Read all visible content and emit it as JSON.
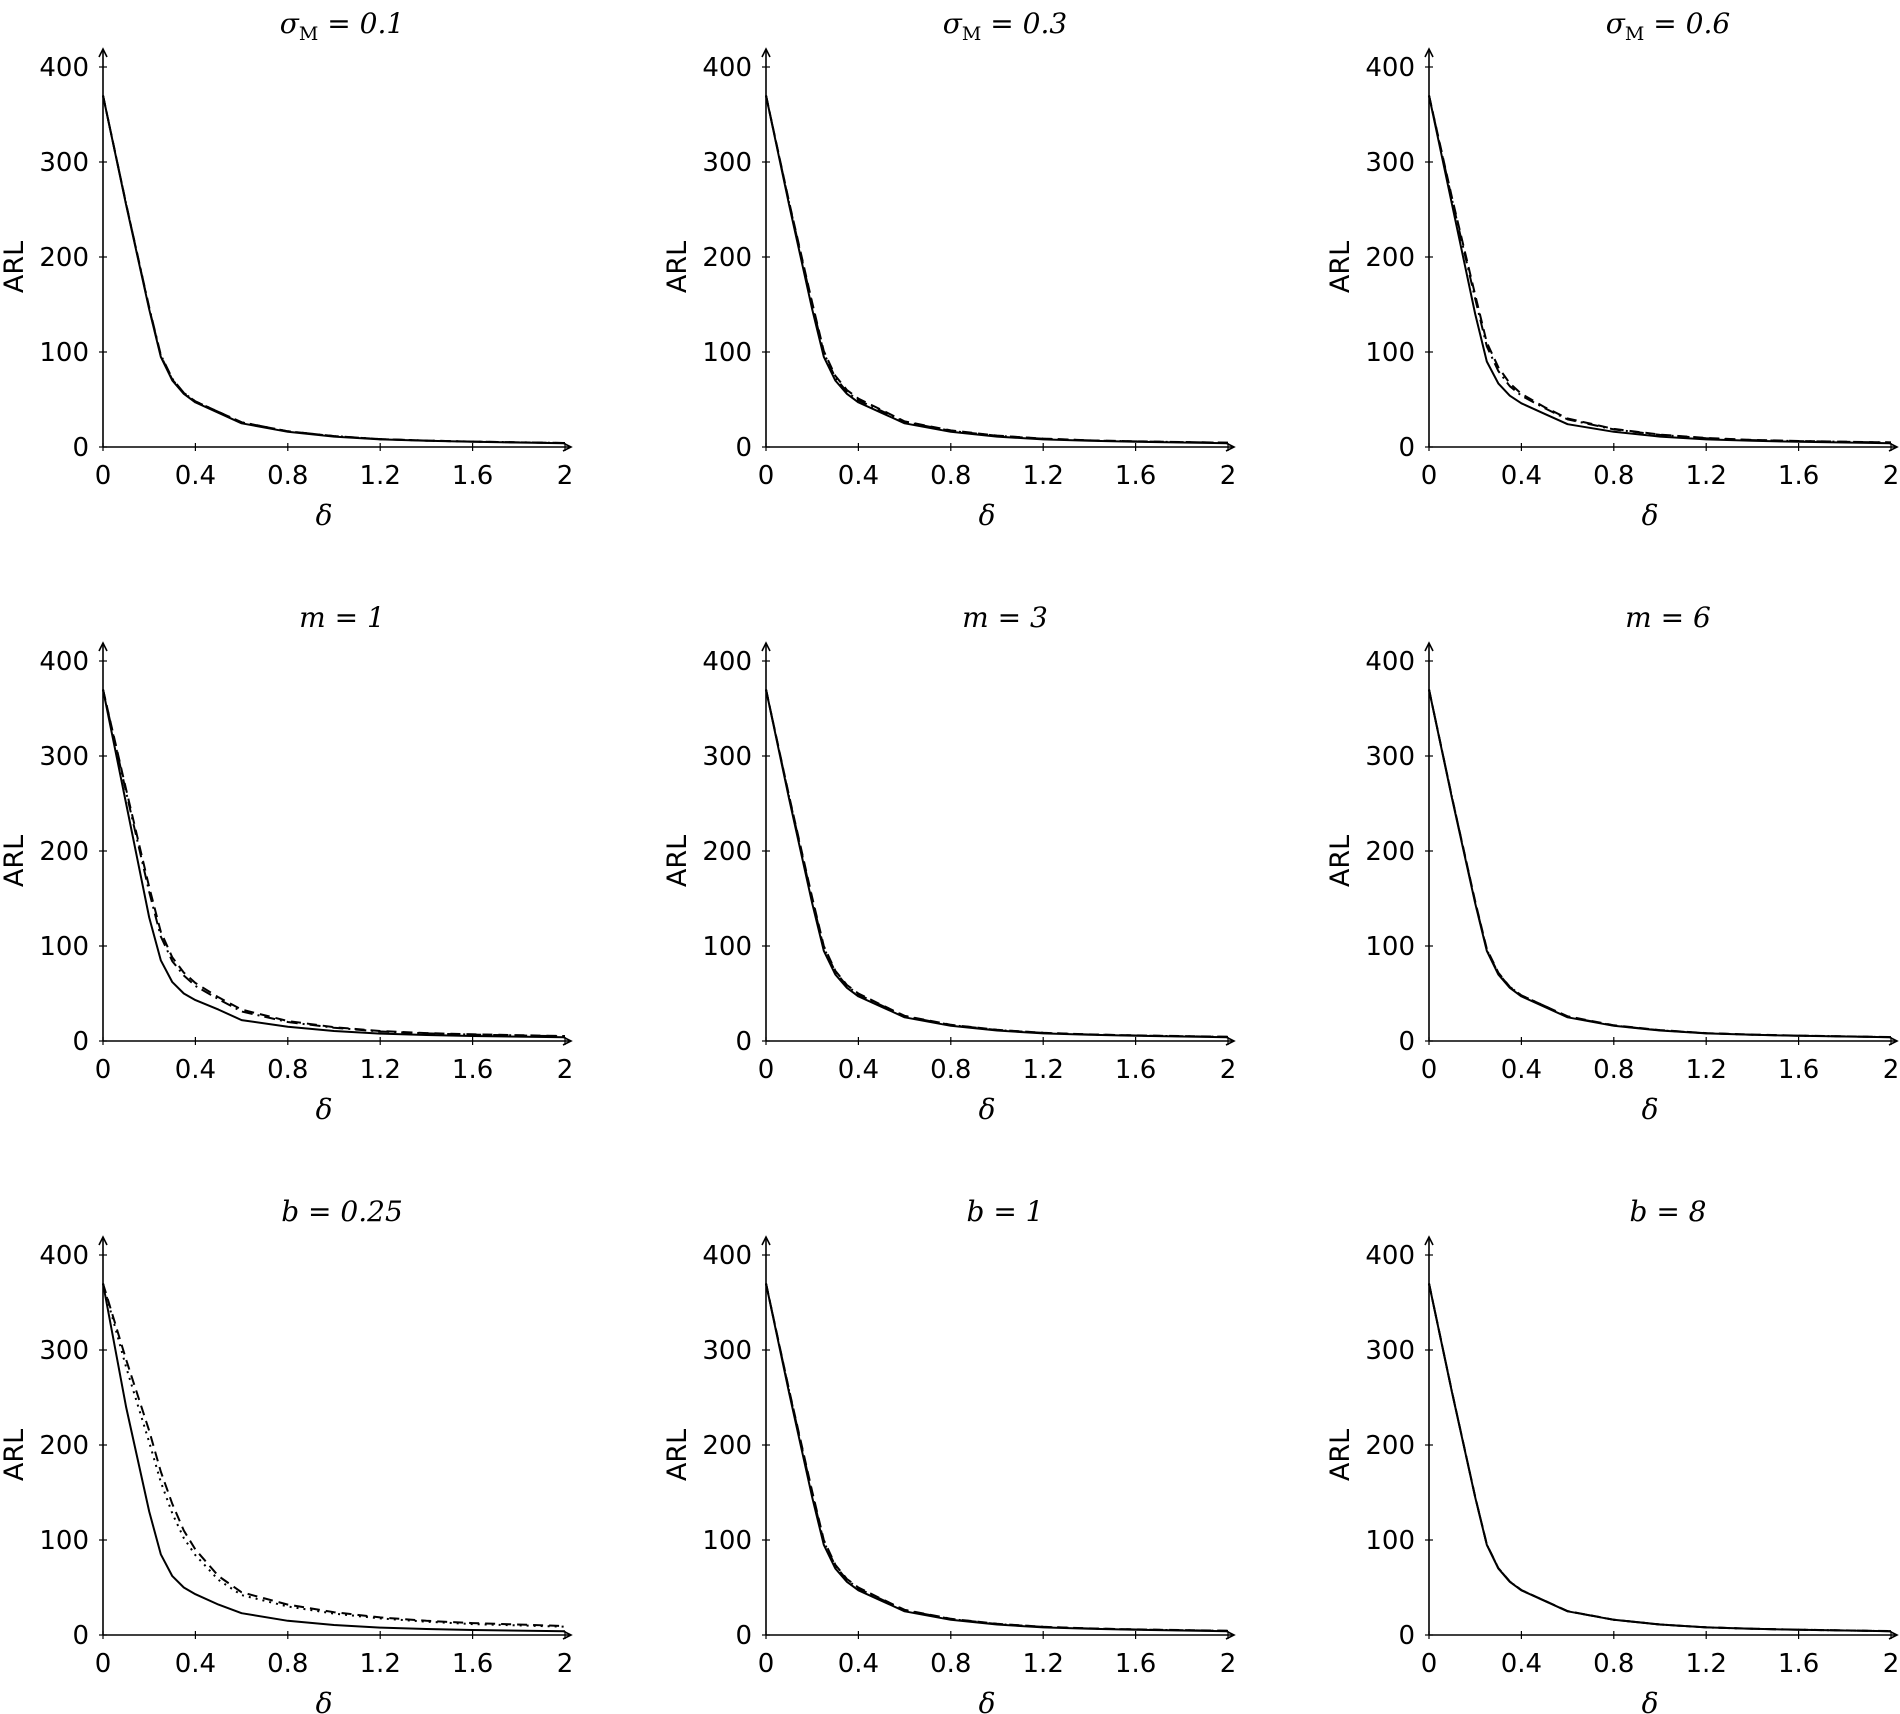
{
  "chart_data": [
    {
      "type": "line",
      "title": "σM = 0.1",
      "xlabel": "δ",
      "ylabel": "ARL",
      "xlim": [
        0,
        2
      ],
      "ylim": [
        0,
        400
      ],
      "xticks": [
        "0",
        "0.4",
        "0.8",
        "1.2",
        "1.6",
        "2"
      ],
      "yticks": [
        "0",
        "100",
        "200",
        "300",
        "400"
      ],
      "x": [
        0,
        0.1,
        0.2,
        0.25,
        0.3,
        0.35,
        0.4,
        0.5,
        0.6,
        0.8,
        1.0,
        1.2,
        1.4,
        1.6,
        2.0
      ],
      "series": [
        {
          "style": "solid",
          "values": [
            370,
            255,
            145,
            95,
            70,
            56,
            47,
            36,
            25,
            16,
            11,
            8,
            6.5,
            5.5,
            4
          ]
        },
        {
          "style": "dashed",
          "values": [
            370,
            256,
            146,
            96,
            71,
            57,
            48,
            37,
            26,
            16.5,
            11.5,
            8.3,
            6.7,
            5.7,
            4.2
          ]
        },
        {
          "style": "dashdot",
          "values": [
            370,
            256,
            147,
            97,
            72,
            57,
            48,
            37,
            26,
            16.5,
            11.5,
            8.3,
            6.7,
            5.7,
            4.2
          ]
        }
      ]
    },
    {
      "type": "line",
      "title": "σM = 0.3",
      "xlabel": "δ",
      "ylabel": "ARL",
      "xlim": [
        0,
        2
      ],
      "ylim": [
        0,
        400
      ],
      "xticks": [
        "0",
        "0.4",
        "0.8",
        "1.2",
        "1.6",
        "2"
      ],
      "yticks": [
        "0",
        "100",
        "200",
        "300",
        "400"
      ],
      "x": [
        0,
        0.1,
        0.2,
        0.25,
        0.3,
        0.35,
        0.4,
        0.5,
        0.6,
        0.8,
        1.0,
        1.2,
        1.4,
        1.6,
        2.0
      ],
      "series": [
        {
          "style": "solid",
          "values": [
            370,
            255,
            145,
            95,
            70,
            56,
            47,
            36,
            25,
            16,
            11,
            8,
            6.5,
            5.5,
            4
          ]
        },
        {
          "style": "dashed",
          "values": [
            370,
            258,
            152,
            101,
            75,
            60,
            51,
            39,
            27,
            17.5,
            12,
            8.8,
            7,
            6,
            4.5
          ]
        },
        {
          "style": "dashdot",
          "values": [
            370,
            257,
            150,
            99,
            73,
            58,
            49,
            38,
            26.5,
            17,
            11.8,
            8.6,
            6.9,
            5.9,
            4.4
          ]
        }
      ]
    },
    {
      "type": "line",
      "title": "σM = 0.6",
      "xlabel": "δ",
      "ylabel": "ARL",
      "xlim": [
        0,
        2
      ],
      "ylim": [
        0,
        400
      ],
      "xticks": [
        "0",
        "0.4",
        "0.8",
        "1.2",
        "1.6",
        "2"
      ],
      "yticks": [
        "0",
        "100",
        "200",
        "300",
        "400"
      ],
      "x": [
        0,
        0.1,
        0.2,
        0.25,
        0.3,
        0.35,
        0.4,
        0.5,
        0.6,
        0.8,
        1.0,
        1.2,
        1.4,
        1.6,
        2.0
      ],
      "series": [
        {
          "style": "solid",
          "values": [
            370,
            255,
            140,
            90,
            67,
            54,
            46,
            35,
            24,
            16,
            11,
            8,
            6.5,
            5.5,
            4
          ]
        },
        {
          "style": "dashed",
          "values": [
            370,
            262,
            160,
            110,
            84,
            67,
            56,
            42,
            30,
            19,
            13,
            9.5,
            7.5,
            6.3,
            4.8
          ]
        },
        {
          "style": "dashdot",
          "values": [
            370,
            260,
            156,
            106,
            80,
            64,
            54,
            41,
            29,
            18.5,
            12.7,
            9.3,
            7.3,
            6.2,
            4.7
          ]
        }
      ]
    },
    {
      "type": "line",
      "title": "m = 1",
      "xlabel": "δ",
      "ylabel": "ARL",
      "xlim": [
        0,
        2
      ],
      "ylim": [
        0,
        400
      ],
      "xticks": [
        "0",
        "0.4",
        "0.8",
        "1.2",
        "1.6",
        "2"
      ],
      "yticks": [
        "0",
        "100",
        "200",
        "300",
        "400"
      ],
      "x": [
        0,
        0.1,
        0.2,
        0.25,
        0.3,
        0.35,
        0.4,
        0.5,
        0.6,
        0.8,
        1.0,
        1.2,
        1.4,
        1.6,
        2.0
      ],
      "series": [
        {
          "style": "solid",
          "values": [
            370,
            250,
            130,
            85,
            62,
            50,
            43,
            33,
            22,
            15,
            10.5,
            7.8,
            6.3,
            5.3,
            4
          ]
        },
        {
          "style": "dashed",
          "values": [
            370,
            265,
            162,
            115,
            88,
            72,
            61,
            46,
            33,
            21,
            14.5,
            10.5,
            8.3,
            7,
            5.2
          ]
        },
        {
          "style": "dashdot",
          "values": [
            370,
            262,
            157,
            110,
            84,
            69,
            58,
            44,
            31,
            20,
            14,
            10,
            8,
            6.7,
            5
          ]
        }
      ]
    },
    {
      "type": "line",
      "title": "m = 3",
      "xlabel": "δ",
      "ylabel": "ARL",
      "xlim": [
        0,
        2
      ],
      "ylim": [
        0,
        400
      ],
      "xticks": [
        "0",
        "0.4",
        "0.8",
        "1.2",
        "1.6",
        "2"
      ],
      "yticks": [
        "0",
        "100",
        "200",
        "300",
        "400"
      ],
      "x": [
        0,
        0.1,
        0.2,
        0.25,
        0.3,
        0.35,
        0.4,
        0.5,
        0.6,
        0.8,
        1.0,
        1.2,
        1.4,
        1.6,
        2.0
      ],
      "series": [
        {
          "style": "solid",
          "values": [
            370,
            255,
            145,
            95,
            70,
            56,
            47,
            36,
            25,
            16,
            11,
            8,
            6.5,
            5.5,
            4
          ]
        },
        {
          "style": "dashed",
          "values": [
            370,
            258,
            151,
            100,
            74,
            59,
            50,
            38,
            26.5,
            17,
            11.8,
            8.6,
            6.9,
            5.9,
            4.4
          ]
        },
        {
          "style": "dashdot",
          "values": [
            370,
            257,
            149,
            98,
            73,
            58,
            49,
            37.5,
            26,
            16.8,
            11.6,
            8.5,
            6.8,
            5.8,
            4.3
          ]
        }
      ]
    },
    {
      "type": "line",
      "title": "m = 6",
      "xlabel": "δ",
      "ylabel": "ARL",
      "xlim": [
        0,
        2
      ],
      "ylim": [
        0,
        400
      ],
      "xticks": [
        "0",
        "0.4",
        "0.8",
        "1.2",
        "1.6",
        "2"
      ],
      "yticks": [
        "0",
        "100",
        "200",
        "300",
        "400"
      ],
      "x": [
        0,
        0.1,
        0.2,
        0.25,
        0.3,
        0.35,
        0.4,
        0.5,
        0.6,
        0.8,
        1.0,
        1.2,
        1.4,
        1.6,
        2.0
      ],
      "series": [
        {
          "style": "solid",
          "values": [
            370,
            255,
            145,
            95,
            70,
            56,
            47,
            36,
            25,
            16,
            11,
            8,
            6.5,
            5.5,
            4
          ]
        },
        {
          "style": "dashed",
          "values": [
            370,
            256,
            147,
            97,
            72,
            57,
            48,
            37,
            26,
            16.5,
            11.5,
            8.3,
            6.7,
            5.7,
            4.2
          ]
        },
        {
          "style": "dashdot",
          "values": [
            370,
            256,
            146,
            96,
            71,
            57,
            48,
            37,
            25.5,
            16.3,
            11.3,
            8.2,
            6.6,
            5.6,
            4.1
          ]
        }
      ]
    },
    {
      "type": "line",
      "title": "b = 0.25",
      "xlabel": "δ",
      "ylabel": "ARL",
      "xlim": [
        0,
        2
      ],
      "ylim": [
        0,
        400
      ],
      "xticks": [
        "0",
        "0.4",
        "0.8",
        "1.2",
        "1.6",
        "2"
      ],
      "yticks": [
        "0",
        "100",
        "200",
        "300",
        "400"
      ],
      "x": [
        0,
        0.1,
        0.2,
        0.25,
        0.3,
        0.35,
        0.4,
        0.5,
        0.6,
        0.8,
        1.0,
        1.2,
        1.4,
        1.6,
        2.0
      ],
      "series": [
        {
          "style": "solid",
          "values": [
            370,
            240,
            130,
            85,
            62,
            50,
            43,
            32,
            23,
            15,
            10.5,
            7.8,
            6.3,
            5.3,
            4
          ]
        },
        {
          "style": "dashed",
          "values": [
            370,
            290,
            215,
            172,
            138,
            110,
            90,
            62,
            45,
            32,
            24,
            18.5,
            15,
            12.5,
            9.5
          ]
        },
        {
          "style": "dotted",
          "values": [
            370,
            282,
            203,
            161,
            128,
            102,
            84,
            58,
            42,
            30,
            22.5,
            17.5,
            14,
            11.5,
            8.7
          ]
        }
      ]
    },
    {
      "type": "line",
      "title": "b = 1",
      "xlabel": "δ",
      "ylabel": "ARL",
      "xlim": [
        0,
        2
      ],
      "ylim": [
        0,
        400
      ],
      "xticks": [
        "0",
        "0.4",
        "0.8",
        "1.2",
        "1.6",
        "2"
      ],
      "yticks": [
        "0",
        "100",
        "200",
        "300",
        "400"
      ],
      "x": [
        0,
        0.1,
        0.2,
        0.25,
        0.3,
        0.35,
        0.4,
        0.5,
        0.6,
        0.8,
        1.0,
        1.2,
        1.4,
        1.6,
        2.0
      ],
      "series": [
        {
          "style": "solid",
          "values": [
            370,
            255,
            145,
            95,
            70,
            56,
            47,
            36,
            25,
            16,
            11,
            8,
            6.5,
            5.5,
            4
          ]
        },
        {
          "style": "dashed",
          "values": [
            370,
            258,
            151,
            100,
            74,
            59,
            50,
            38,
            26.5,
            17,
            11.8,
            8.6,
            6.9,
            5.9,
            4.4
          ]
        },
        {
          "style": "dashdot",
          "values": [
            370,
            257,
            149,
            98,
            73,
            58,
            49,
            37.5,
            26,
            16.8,
            11.6,
            8.5,
            6.8,
            5.8,
            4.3
          ]
        }
      ]
    },
    {
      "type": "line",
      "title": "b = 8",
      "xlabel": "δ",
      "ylabel": "ARL",
      "xlim": [
        0,
        2
      ],
      "ylim": [
        0,
        400
      ],
      "xticks": [
        "0",
        "0.4",
        "0.8",
        "1.2",
        "1.6",
        "2"
      ],
      "yticks": [
        "0",
        "100",
        "200",
        "300",
        "400"
      ],
      "x": [
        0,
        0.1,
        0.2,
        0.25,
        0.3,
        0.35,
        0.4,
        0.5,
        0.6,
        0.8,
        1.0,
        1.2,
        1.4,
        1.6,
        2.0
      ],
      "series": [
        {
          "style": "solid",
          "values": [
            370,
            255,
            145,
            95,
            70,
            56,
            47,
            36,
            25,
            16,
            11,
            8,
            6.5,
            5.5,
            4
          ]
        },
        {
          "style": "dashed",
          "values": [
            370,
            255.5,
            145.5,
            95.5,
            70.5,
            56.3,
            47.3,
            36.2,
            25.2,
            16.1,
            11.1,
            8.1,
            6.6,
            5.6,
            4.1
          ]
        },
        {
          "style": "dashdot",
          "values": [
            370,
            255.3,
            145.3,
            95.3,
            70.3,
            56.2,
            47.2,
            36.1,
            25.1,
            16.05,
            11.05,
            8.05,
            6.55,
            5.55,
            4.05
          ]
        }
      ]
    }
  ]
}
